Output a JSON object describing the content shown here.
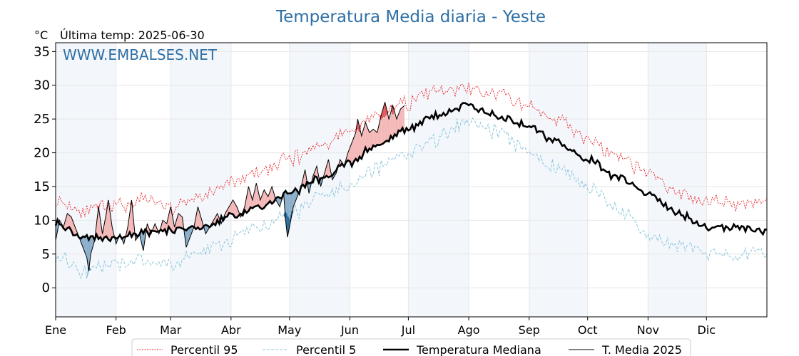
{
  "chart_data": {
    "type": "line",
    "title": "Temperatura Media diaria - Yeste",
    "subtitle": "Última temp: 2025-06-30",
    "ylabel": "°C",
    "watermark": "WWW.EMBALSES.NET",
    "ylim": [
      -4.3,
      36.3
    ],
    "yticks": [
      0,
      5,
      10,
      15,
      20,
      25,
      30,
      35
    ],
    "xlim": [
      1,
      366
    ],
    "months": [
      {
        "label": "Ene",
        "start": 1
      },
      {
        "label": "Feb",
        "start": 32
      },
      {
        "label": "Mar",
        "start": 60
      },
      {
        "label": "Abr",
        "start": 91
      },
      {
        "label": "May",
        "start": 121
      },
      {
        "label": "Jun",
        "start": 152
      },
      {
        "label": "Jul",
        "start": 182
      },
      {
        "label": "Ago",
        "start": 213
      },
      {
        "label": "Sep",
        "start": 244
      },
      {
        "label": "Oct",
        "start": 274
      },
      {
        "label": "Nov",
        "start": 305
      },
      {
        "label": "Dic",
        "start": 335
      }
    ],
    "grid": true,
    "legend_position": "bottom",
    "series": [
      {
        "name": "Percentil 95",
        "key": "p95",
        "color": "#e8262a",
        "style": "dotted",
        "anchors": [
          [
            1,
            13
          ],
          [
            15,
            11.5
          ],
          [
            32,
            12
          ],
          [
            45,
            13
          ],
          [
            60,
            12
          ],
          [
            75,
            13.5
          ],
          [
            91,
            15.5
          ],
          [
            105,
            17
          ],
          [
            121,
            19
          ],
          [
            135,
            21
          ],
          [
            152,
            23
          ],
          [
            165,
            25.5
          ],
          [
            182,
            27.5
          ],
          [
            195,
            29
          ],
          [
            213,
            29.5
          ],
          [
            228,
            28.5
          ],
          [
            244,
            27
          ],
          [
            258,
            25
          ],
          [
            274,
            22
          ],
          [
            288,
            19.5
          ],
          [
            305,
            17
          ],
          [
            320,
            14
          ],
          [
            335,
            13
          ],
          [
            350,
            12.5
          ],
          [
            366,
            13
          ]
        ]
      },
      {
        "name": "Percentil 5",
        "key": "p5",
        "color": "#8ec6dd",
        "style": "dashed",
        "anchors": [
          [
            1,
            5
          ],
          [
            15,
            2.5
          ],
          [
            32,
            3.5
          ],
          [
            45,
            4
          ],
          [
            60,
            3.5
          ],
          [
            75,
            5
          ],
          [
            91,
            7
          ],
          [
            105,
            9
          ],
          [
            121,
            11
          ],
          [
            135,
            13
          ],
          [
            152,
            15.5
          ],
          [
            165,
            17.5
          ],
          [
            182,
            20
          ],
          [
            195,
            22
          ],
          [
            213,
            24.5
          ],
          [
            228,
            23
          ],
          [
            244,
            20
          ],
          [
            258,
            18
          ],
          [
            274,
            15
          ],
          [
            288,
            12
          ],
          [
            305,
            8
          ],
          [
            320,
            6
          ],
          [
            335,
            5
          ],
          [
            350,
            5
          ],
          [
            366,
            5.5
          ]
        ]
      },
      {
        "name": "Temperatura Mediana",
        "key": "median",
        "color": "#000000",
        "style": "solid-thick",
        "anchors": [
          [
            1,
            9.5
          ],
          [
            15,
            7.5
          ],
          [
            32,
            7.5
          ],
          [
            45,
            8
          ],
          [
            60,
            8.5
          ],
          [
            75,
            9
          ],
          [
            91,
            10.5
          ],
          [
            105,
            12
          ],
          [
            121,
            14
          ],
          [
            135,
            16
          ],
          [
            152,
            18.5
          ],
          [
            165,
            21
          ],
          [
            182,
            23.5
          ],
          [
            195,
            25.5
          ],
          [
            213,
            27
          ],
          [
            228,
            25.5
          ],
          [
            244,
            24
          ],
          [
            258,
            21.5
          ],
          [
            274,
            19
          ],
          [
            288,
            16.5
          ],
          [
            305,
            14
          ],
          [
            320,
            11
          ],
          [
            335,
            9
          ],
          [
            350,
            9
          ],
          [
            366,
            8.5
          ]
        ]
      },
      {
        "name": "T. Media 2025",
        "key": "current",
        "color": "#000000",
        "style": "solid-thin",
        "points": [
          [
            1,
            7
          ],
          [
            3,
            10
          ],
          [
            5,
            9
          ],
          [
            7,
            11
          ],
          [
            9,
            10.5
          ],
          [
            11,
            9
          ],
          [
            13,
            7.5
          ],
          [
            15,
            6
          ],
          [
            17,
            4.5
          ],
          [
            18,
            2.5
          ],
          [
            19,
            5
          ],
          [
            21,
            7
          ],
          [
            23,
            12
          ],
          [
            25,
            8
          ],
          [
            27,
            11
          ],
          [
            28,
            13
          ],
          [
            30,
            9
          ],
          [
            32,
            6.5
          ],
          [
            34,
            8
          ],
          [
            36,
            6.5
          ],
          [
            38,
            9
          ],
          [
            40,
            13
          ],
          [
            42,
            7
          ],
          [
            44,
            8
          ],
          [
            46,
            5.5
          ],
          [
            48,
            9.5
          ],
          [
            50,
            8
          ],
          [
            52,
            9.5
          ],
          [
            54,
            8
          ],
          [
            56,
            10
          ],
          [
            58,
            9.5
          ],
          [
            60,
            12
          ],
          [
            62,
            9
          ],
          [
            64,
            11
          ],
          [
            66,
            10.5
          ],
          [
            68,
            6
          ],
          [
            70,
            7.5
          ],
          [
            72,
            9
          ],
          [
            74,
            12
          ],
          [
            76,
            10
          ],
          [
            78,
            8
          ],
          [
            80,
            9
          ],
          [
            82,
            10
          ],
          [
            84,
            11
          ],
          [
            86,
            9.5
          ],
          [
            88,
            11
          ],
          [
            90,
            12
          ],
          [
            92,
            13
          ],
          [
            94,
            12
          ],
          [
            96,
            10.5
          ],
          [
            98,
            12
          ],
          [
            100,
            15
          ],
          [
            102,
            13
          ],
          [
            104,
            15.5
          ],
          [
            106,
            13
          ],
          [
            108,
            14.5
          ],
          [
            110,
            13.5
          ],
          [
            112,
            15
          ],
          [
            114,
            13
          ],
          [
            116,
            12
          ],
          [
            118,
            14
          ],
          [
            119,
            10
          ],
          [
            120,
            7.5
          ],
          [
            121,
            9
          ],
          [
            123,
            12
          ],
          [
            125,
            13.5
          ],
          [
            127,
            15
          ],
          [
            129,
            17.5
          ],
          [
            131,
            14
          ],
          [
            133,
            16.5
          ],
          [
            135,
            18
          ],
          [
            137,
            15
          ],
          [
            139,
            17
          ],
          [
            141,
            19
          ],
          [
            143,
            16
          ],
          [
            145,
            17
          ],
          [
            147,
            19
          ],
          [
            149,
            18
          ],
          [
            151,
            20
          ],
          [
            153,
            21.5
          ],
          [
            155,
            23
          ],
          [
            156,
            25
          ],
          [
            158,
            22.5
          ],
          [
            160,
            24.5
          ],
          [
            162,
            23
          ],
          [
            164,
            23.5
          ],
          [
            166,
            23
          ],
          [
            168,
            25.5
          ],
          [
            170,
            27.5
          ],
          [
            172,
            25
          ],
          [
            174,
            27
          ],
          [
            176,
            25
          ],
          [
            178,
            26.5
          ],
          [
            180,
            27
          ]
        ]
      }
    ],
    "legend": [
      {
        "label": "Percentil 95",
        "key": "p95"
      },
      {
        "label": "Percentil 5",
        "key": "p5"
      },
      {
        "label": "Temperatura Mediana",
        "key": "median"
      },
      {
        "label": "T. Media 2025",
        "key": "current"
      }
    ],
    "fill_colors": {
      "above_median": "#f4b8b8",
      "above_p95": "#e4585b",
      "below_median": "#8aaecb",
      "below_p5": "#2e6c9c"
    }
  }
}
